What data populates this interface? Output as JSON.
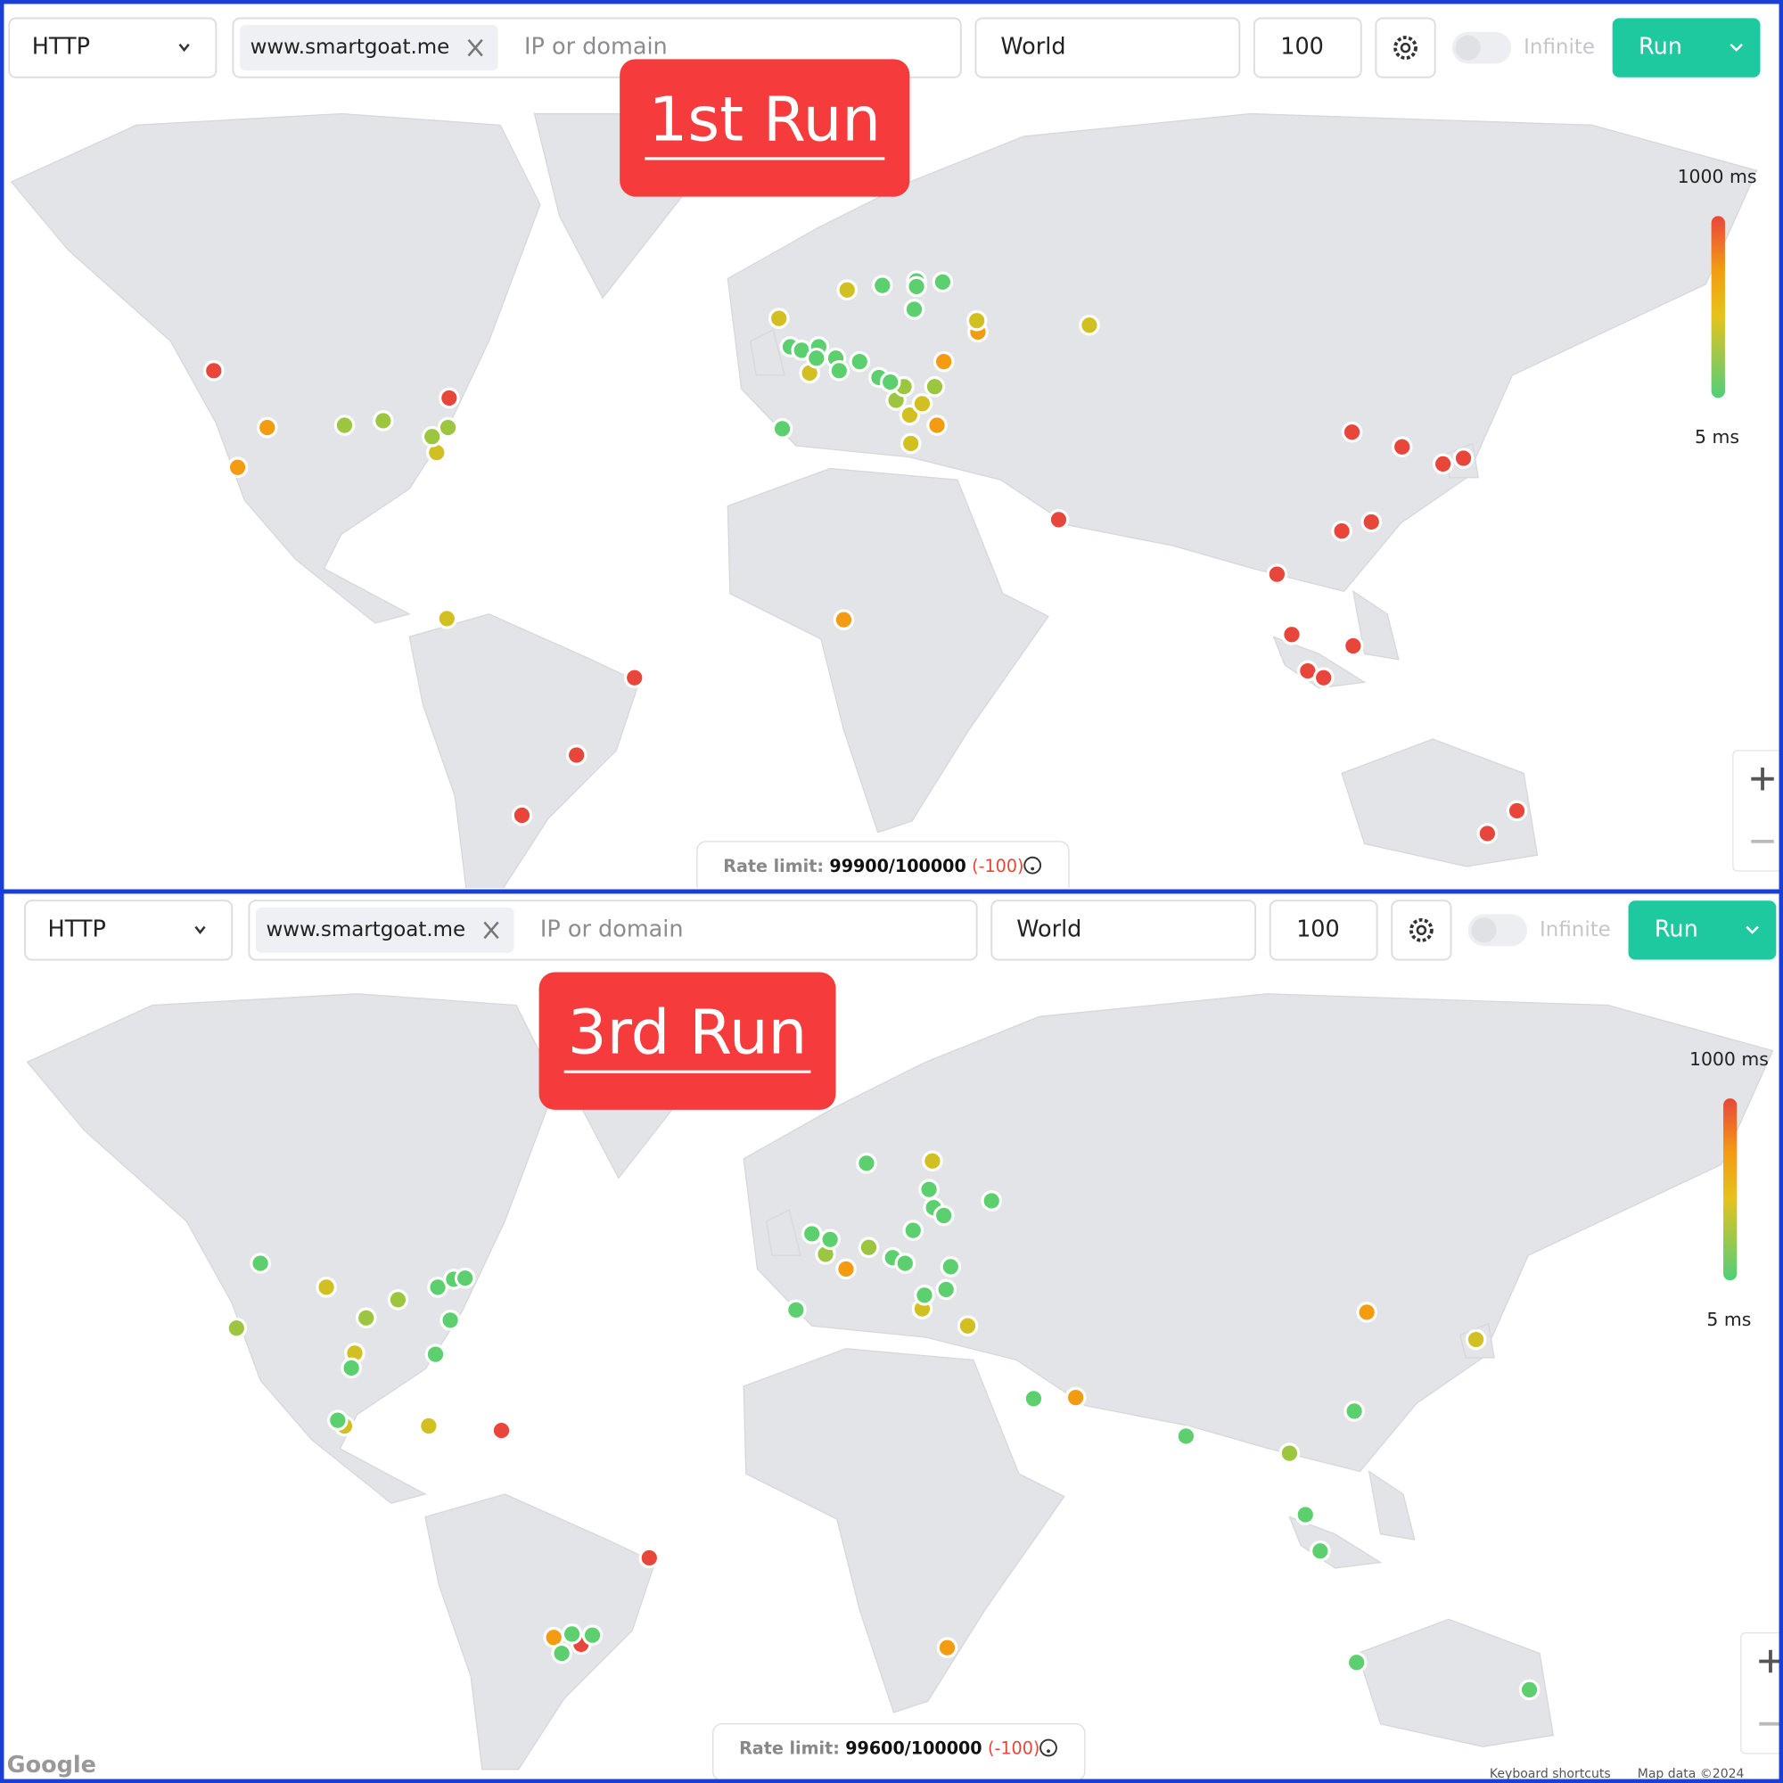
{
  "panels": [
    {
      "toolbar": {
        "protocol": "HTTP",
        "target": "www.smartgoat.me",
        "placeholder": "IP or domain",
        "location": "World",
        "limit": "100",
        "infinite": "Infinite",
        "run": "Run"
      },
      "label": "1st Run",
      "legend": {
        "max": "1000 ms",
        "min": "5 ms"
      },
      "rate_limit": {
        "label": "Rate limit:",
        "value": "99900/100000",
        "delta": "(-100)"
      }
    },
    {
      "toolbar": {
        "protocol": "HTTP",
        "target": "www.smartgoat.me",
        "placeholder": "IP or domain",
        "location": "World",
        "limit": "100",
        "infinite": "Infinite",
        "run": "Run"
      },
      "label": "3rd Run",
      "legend": {
        "max": "1000 ms",
        "min": "5 ms"
      },
      "rate_limit": {
        "label": "Rate limit:",
        "value": "99600/100000",
        "delta": "(-100)"
      },
      "footer": {
        "google": "Google",
        "shortcuts": "Keyboard shortcuts",
        "map_data": "Map data ©2024"
      }
    }
  ]
}
